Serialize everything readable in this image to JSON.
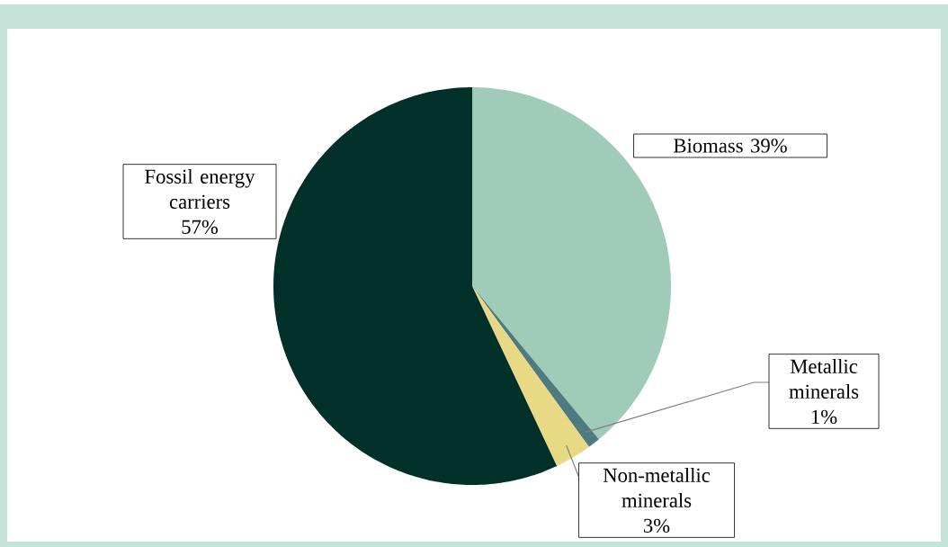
{
  "chart_data": {
    "type": "pie",
    "categories": [
      "Biomass",
      "Metallic minerals",
      "Non-metallic minerals",
      "Fossil energy carriers"
    ],
    "values": [
      39,
      1,
      3,
      57
    ],
    "value_labels": [
      "39%",
      "1%",
      "3%",
      "57%"
    ],
    "colors": [
      "#a0cbb9",
      "#4f7a80",
      "#e8da84",
      "#003028"
    ]
  }
}
